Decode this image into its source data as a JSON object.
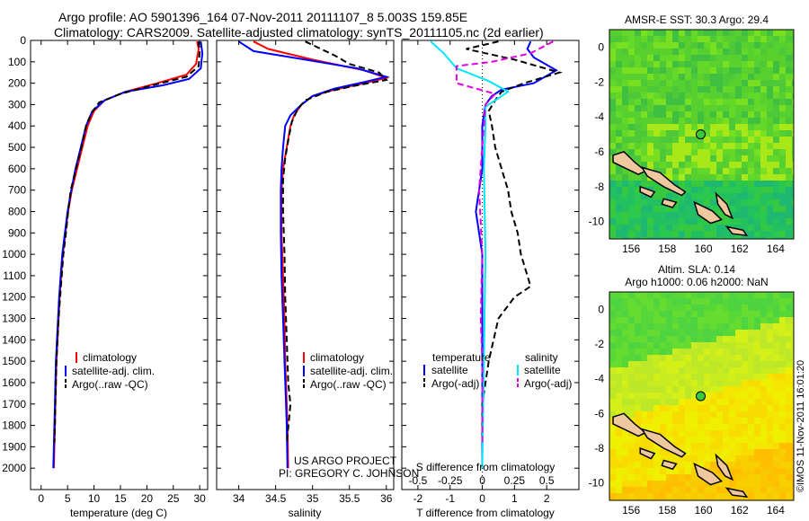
{
  "header": {
    "line1": "Argo profile: AO 5901396_164 07-Nov-2011 20111107_8 5.003S 159.85E",
    "line2": "Climatology: CARS2009. Satellite-adjusted climatology: synTS_20111105.nc (2d earlier)"
  },
  "colors": {
    "red": "#ff0000",
    "blue": "#0000ff",
    "black": "#000000",
    "cyan": "#00e5ff",
    "magenta": "#e000e0"
  },
  "chart_data": [
    {
      "type": "line",
      "id": "temperature",
      "xlabel": "temperature (deg C)",
      "ylabel": "",
      "xlim": [
        -2,
        31.5
      ],
      "ylim": [
        2100,
        0
      ],
      "xticks": [
        0,
        5,
        10,
        15,
        20,
        25,
        30
      ],
      "yticks": [
        0,
        100,
        200,
        300,
        400,
        500,
        600,
        700,
        800,
        900,
        1000,
        1100,
        1200,
        1300,
        1400,
        1500,
        1600,
        1700,
        1800,
        1900,
        2000
      ],
      "legend": [
        "climatology",
        "satellite-adj. clim.",
        "Argo(..raw -QC)"
      ],
      "series": [
        {
          "name": "climatology",
          "color": "red",
          "dash": false,
          "points": [
            [
              29.5,
              5
            ],
            [
              29.8,
              40
            ],
            [
              29.3,
              110
            ],
            [
              27.5,
              160
            ],
            [
              22,
              200
            ],
            [
              16,
              240
            ],
            [
              12,
              280
            ],
            [
              10,
              330
            ],
            [
              8.8,
              400
            ],
            [
              7.8,
              500
            ],
            [
              6.8,
              600
            ],
            [
              5.8,
              700
            ],
            [
              5.1,
              800
            ],
            [
              4.6,
              900
            ],
            [
              4.1,
              1000
            ],
            [
              3.8,
              1100
            ],
            [
              3.5,
              1200
            ],
            [
              3.3,
              1300
            ],
            [
              3.1,
              1400
            ],
            [
              2.9,
              1500
            ],
            [
              2.8,
              1600
            ],
            [
              2.7,
              1700
            ],
            [
              2.6,
              1800
            ],
            [
              2.5,
              1900
            ],
            [
              2.4,
              2000
            ]
          ]
        },
        {
          "name": "satellite-adj. clim.",
          "color": "blue",
          "dash": false,
          "points": [
            [
              30.2,
              5
            ],
            [
              30.5,
              60
            ],
            [
              30.2,
              130
            ],
            [
              28,
              180
            ],
            [
              23,
              210
            ],
            [
              16,
              240
            ],
            [
              12,
              280
            ],
            [
              9.7,
              330
            ],
            [
              8.5,
              400
            ],
            [
              7.5,
              500
            ],
            [
              6.5,
              600
            ],
            [
              5.7,
              700
            ],
            [
              5,
              800
            ],
            [
              4.5,
              900
            ],
            [
              4,
              1000
            ],
            [
              3.7,
              1100
            ],
            [
              3.4,
              1200
            ],
            [
              3.2,
              1300
            ],
            [
              3,
              1400
            ],
            [
              2.8,
              1500
            ],
            [
              2.7,
              1600
            ],
            [
              2.6,
              1700
            ],
            [
              2.5,
              1800
            ],
            [
              2.4,
              1900
            ],
            [
              2.3,
              2000
            ]
          ]
        },
        {
          "name": "Argo(..raw -QC)",
          "color": "black",
          "dash": true,
          "points": [
            [
              29.8,
              5
            ],
            [
              30,
              50
            ],
            [
              29.8,
              120
            ],
            [
              27.5,
              170
            ],
            [
              21,
              210
            ],
            [
              15,
              250
            ],
            [
              11,
              290
            ],
            [
              9.5,
              340
            ],
            [
              8.5,
              400
            ],
            [
              7.6,
              500
            ],
            [
              6.6,
              600
            ],
            [
              5.6,
              700
            ],
            [
              5.1,
              800
            ],
            [
              4.7,
              900
            ],
            [
              4.2,
              1000
            ],
            [
              3.9,
              1100
            ],
            [
              3.6,
              1200
            ],
            [
              3.3,
              1300
            ],
            [
              3.1,
              1400
            ],
            [
              2.9,
              1500
            ],
            [
              2.8,
              1600
            ],
            [
              2.7,
              1700
            ],
            [
              2.6,
              1800
            ],
            [
              2.5,
              1880
            ]
          ]
        }
      ]
    },
    {
      "type": "line",
      "id": "salinity",
      "xlabel": "salinity",
      "ylabel": "",
      "xlim": [
        33.7,
        36.1
      ],
      "ylim": [
        2100,
        0
      ],
      "xticks": [
        34,
        34.5,
        35,
        35.5,
        36
      ],
      "legend": [
        "climatology",
        "satellite-adj. clim.",
        "Argo(..raw -QC)"
      ],
      "series": [
        {
          "name": "climatology",
          "color": "red",
          "dash": false,
          "points": [
            [
              34.2,
              5
            ],
            [
              34.4,
              40
            ],
            [
              35,
              90
            ],
            [
              35.7,
              140
            ],
            [
              36,
              175
            ],
            [
              35.7,
              200
            ],
            [
              35.3,
              230
            ],
            [
              35,
              260
            ],
            [
              34.85,
              300
            ],
            [
              34.75,
              350
            ],
            [
              34.7,
              400
            ],
            [
              34.65,
              500
            ],
            [
              34.6,
              600
            ],
            [
              34.58,
              700
            ],
            [
              34.58,
              900
            ],
            [
              34.6,
              1100
            ],
            [
              34.62,
              1300
            ],
            [
              34.63,
              1500
            ],
            [
              34.65,
              1700
            ],
            [
              34.66,
              1800
            ],
            [
              34.67,
              2000
            ]
          ]
        },
        {
          "name": "satellite-adj. clim.",
          "color": "blue",
          "dash": false,
          "points": [
            [
              34.0,
              5
            ],
            [
              34.2,
              50
            ],
            [
              34.9,
              90
            ],
            [
              35.6,
              130
            ],
            [
              36,
              170
            ],
            [
              35.7,
              195
            ],
            [
              35.3,
              225
            ],
            [
              35,
              260
            ],
            [
              34.85,
              300
            ],
            [
              34.7,
              350
            ],
            [
              34.63,
              400
            ],
            [
              34.6,
              500
            ],
            [
              34.58,
              600
            ],
            [
              34.57,
              700
            ],
            [
              34.57,
              900
            ],
            [
              34.58,
              1100
            ],
            [
              34.6,
              1300
            ],
            [
              34.62,
              1500
            ],
            [
              34.64,
              1700
            ],
            [
              34.65,
              1800
            ],
            [
              34.66,
              2000
            ]
          ]
        },
        {
          "name": "Argo(..raw -QC)",
          "color": "black",
          "dash": true,
          "points": [
            [
              34.9,
              5
            ],
            [
              35.3,
              70
            ],
            [
              35.5,
              110
            ],
            [
              35.9,
              150
            ],
            [
              36,
              185
            ],
            [
              35.6,
              210
            ],
            [
              35.2,
              240
            ],
            [
              34.9,
              280
            ],
            [
              34.8,
              320
            ],
            [
              34.72,
              380
            ],
            [
              34.68,
              450
            ],
            [
              34.63,
              550
            ],
            [
              34.6,
              650
            ],
            [
              34.6,
              800
            ],
            [
              34.62,
              1000
            ],
            [
              34.63,
              1200
            ],
            [
              34.65,
              1400
            ],
            [
              34.67,
              1600
            ],
            [
              34.7,
              1700
            ],
            [
              34.68,
              1780
            ],
            [
              34.65,
              1880
            ]
          ]
        }
      ]
    },
    {
      "type": "line",
      "id": "difference",
      "xlabel": "T difference from climatology",
      "xlabel2": "S difference from climatology",
      "xlim": [
        -2.5,
        3
      ],
      "ylim": [
        2100,
        0
      ],
      "xticks": [
        -2,
        -1,
        0,
        1,
        2
      ],
      "xticks_s": [
        "-0.5",
        "-0.25",
        "0",
        "0.25",
        "0.5"
      ],
      "legend_headers": [
        "temperature",
        "salinity"
      ],
      "legend": [
        "satellite",
        "Argo(-adj)",
        "satellite",
        "Argo(-adj)"
      ],
      "series": [
        {
          "name": "temperature satellite",
          "color": "blue",
          "dash": false,
          "points": [
            [
              1.5,
              5
            ],
            [
              1.4,
              40
            ],
            [
              1.6,
              80
            ],
            [
              2.3,
              140
            ],
            [
              1.6,
              200
            ],
            [
              0.6,
              230
            ],
            [
              0.3,
              260
            ],
            [
              0.1,
              300
            ],
            [
              0,
              400
            ],
            [
              0,
              600
            ],
            [
              -0.1,
              700
            ],
            [
              -0.2,
              800
            ],
            [
              -0.1,
              900
            ],
            [
              0,
              1000
            ],
            [
              0,
              1200
            ],
            [
              0,
              2000
            ]
          ]
        },
        {
          "name": "temperature Argo(-adj)",
          "color": "black",
          "dash": true,
          "points": [
            [
              0.5,
              5
            ],
            [
              -0.5,
              40
            ],
            [
              1,
              90
            ],
            [
              2.4,
              150
            ],
            [
              1.3,
              200
            ],
            [
              0.6,
              240
            ],
            [
              0.4,
              280
            ],
            [
              0.2,
              330
            ],
            [
              0.3,
              400
            ],
            [
              0.4,
              500
            ],
            [
              0.6,
              600
            ],
            [
              0.8,
              700
            ],
            [
              0.9,
              800
            ],
            [
              1.1,
              900
            ],
            [
              1.2,
              1000
            ],
            [
              1.4,
              1100
            ],
            [
              1.5,
              1150
            ],
            [
              1,
              1200
            ],
            [
              0.5,
              1300
            ],
            [
              0.2,
              1500
            ],
            [
              0,
              1700
            ],
            [
              0,
              1880
            ]
          ]
        },
        {
          "name": "salinity satellite",
          "color": "cyan",
          "dash": false,
          "points": [
            [
              -1.6,
              5
            ],
            [
              -1.2,
              60
            ],
            [
              -0.8,
              130
            ],
            [
              0.2,
              190
            ],
            [
              0.8,
              240
            ],
            [
              0.5,
              270
            ],
            [
              0.1,
              310
            ],
            [
              0.1,
              400
            ],
            [
              0.05,
              600
            ],
            [
              0.1,
              1000
            ],
            [
              0.05,
              1500
            ],
            [
              0,
              2000
            ]
          ]
        },
        {
          "name": "salinity Argo(-adj)",
          "color": "magenta",
          "dash": true,
          "points": [
            [
              2.2,
              5
            ],
            [
              1.5,
              60
            ],
            [
              0.3,
              100
            ],
            [
              -0.8,
              120
            ],
            [
              -0.8,
              200
            ],
            [
              0.4,
              250
            ],
            [
              0.1,
              300
            ],
            [
              0,
              500
            ],
            [
              -0.1,
              700
            ],
            [
              0,
              1000
            ],
            [
              -0.05,
              1300
            ],
            [
              0,
              1500
            ],
            [
              0,
              1880
            ]
          ]
        }
      ]
    },
    {
      "type": "heatmap",
      "id": "sst-map",
      "title": "AMSR-E SST: 30.3 Argo: 29.4",
      "xlim": [
        154.8,
        165
      ],
      "ylim": [
        -11,
        1
      ],
      "xticks": [
        156,
        158,
        160,
        162,
        164
      ],
      "yticks": [
        0,
        -2,
        -4,
        -6,
        -8,
        -10
      ],
      "marker": [
        159.85,
        -5.003
      ]
    },
    {
      "type": "heatmap",
      "id": "sla-map",
      "title1": "Altim. SLA: 0.14",
      "title2": "Argo h1000: 0.06 h2000: NaN",
      "xlim": [
        154.8,
        165
      ],
      "ylim": [
        -11,
        1
      ],
      "xticks": [
        156,
        158,
        160,
        162,
        164
      ],
      "yticks": [
        0,
        -2,
        -4,
        -6,
        -8,
        -10
      ],
      "marker": [
        159.85,
        -5.003
      ]
    }
  ],
  "credits": {
    "line1": "US ARGO PROJECT",
    "line2": "PI: GREGORY C. JOHNSON",
    "side": "©IMOS 11-Nov-2011 16:01:20"
  }
}
